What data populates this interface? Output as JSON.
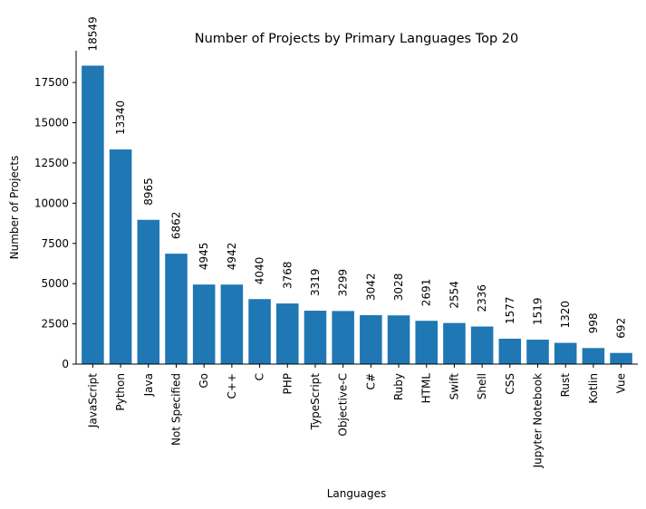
{
  "chart_data": {
    "type": "bar",
    "title": "Number of Projects by Primary Languages Top 20",
    "xlabel": "Languages",
    "ylabel": "Number of Projects",
    "categories": [
      "JavaScript",
      "Python",
      "Java",
      "Not Specified",
      "Go",
      "C++",
      "C",
      "PHP",
      "TypeScript",
      "Objective-C",
      "C#",
      "Ruby",
      "HTML",
      "Swift",
      "Shell",
      "CSS",
      "Jupyter Notebook",
      "Rust",
      "Kotlin",
      "Vue"
    ],
    "values": [
      18549,
      13340,
      8965,
      6862,
      4945,
      4942,
      4040,
      3768,
      3319,
      3299,
      3042,
      3028,
      2691,
      2554,
      2336,
      1577,
      1519,
      1320,
      998,
      692
    ],
    "yticks": [
      0,
      2500,
      5000,
      7500,
      10000,
      12500,
      15000,
      17500
    ],
    "ylim": [
      0,
      19476
    ],
    "bar_color": "#1f77b4",
    "grid": false,
    "data_labels": true
  }
}
